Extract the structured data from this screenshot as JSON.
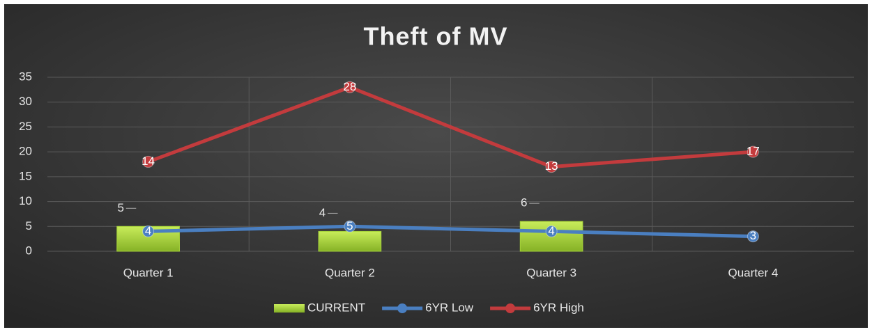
{
  "chart_data": {
    "type": "combo",
    "title": "Theft of MV",
    "categories": [
      "Quarter 1",
      "Quarter 2",
      "Quarter 3",
      "Quarter 4"
    ],
    "series": [
      {
        "name": "CURRENT",
        "type": "bar",
        "color": "#a6d33a",
        "values": [
          5,
          4,
          6,
          null
        ]
      },
      {
        "name": "6YR Low",
        "type": "line",
        "color": "#4a7fc1",
        "values": [
          4,
          5,
          4,
          3
        ]
      },
      {
        "name": "6YR High",
        "type": "line",
        "color": "#c33b3d",
        "values": [
          14,
          28,
          13,
          17
        ]
      }
    ],
    "stacked": true,
    "ylim": [
      0,
      35
    ],
    "yticks": [
      0,
      5,
      10,
      15,
      20,
      25,
      30,
      35
    ],
    "grid": true,
    "legend": "bottom"
  }
}
